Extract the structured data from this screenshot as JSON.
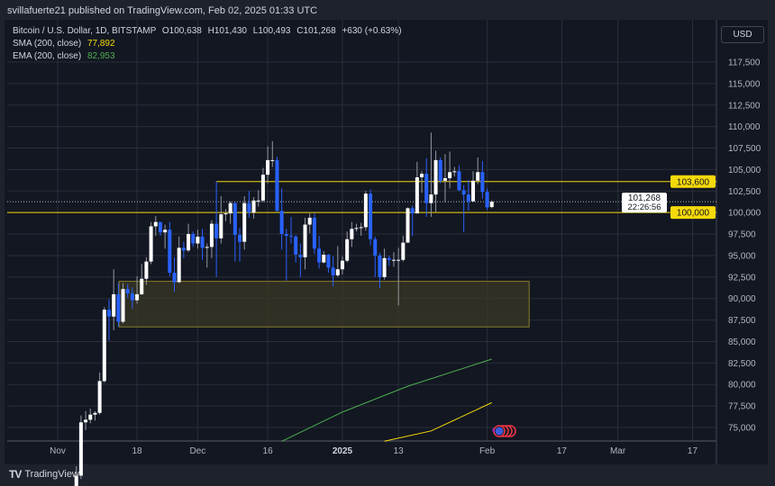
{
  "header": {
    "published": "svillafuerte21 published on TradingView.com, Feb 02, 2025 01:33 UTC"
  },
  "legend": {
    "symbol": "Bitcoin / U.S. Dollar, 1D, BITSTAMP",
    "open": "O100,638",
    "high": "H101,430",
    "low": "L100,493",
    "close": "C101,268",
    "change": "+630 (+0.63%)",
    "sma_label": "SMA (200, close)",
    "sma_value": "77,892",
    "ema_label": "EMA (200, close)",
    "ema_value": "82,953"
  },
  "currency": "USD",
  "footer": {
    "brand": "TradingView"
  },
  "colors": {
    "up": "#ffffff",
    "down": "#2962ff",
    "level": "#f5d90a",
    "sma": "#f5d90a",
    "ema": "#4caf50",
    "zone": "#3a3824"
  },
  "price_axis": [
    "117,500",
    "115,000",
    "112,500",
    "110,000",
    "107,500",
    "105,000",
    "102,500",
    "100,000",
    "97,500",
    "95,000",
    "92,500",
    "90,000",
    "87,500",
    "85,000",
    "82,500",
    "80,000",
    "77,500",
    "75,000"
  ],
  "time_axis": [
    {
      "label": "Nov",
      "date": "2024-11-01"
    },
    {
      "label": "18",
      "date": "2024-11-18"
    },
    {
      "label": "Dec",
      "date": "2024-12-01"
    },
    {
      "label": "16",
      "date": "2024-12-16"
    },
    {
      "label": "2025",
      "date": "2025-01-01",
      "bold": true
    },
    {
      "label": "13",
      "date": "2025-01-13"
    },
    {
      "label": "Feb",
      "date": "2025-02-01"
    },
    {
      "label": "17",
      "date": "2025-02-17"
    },
    {
      "label": "Mar",
      "date": "2025-03-01"
    },
    {
      "label": "17",
      "date": "2025-03-17"
    }
  ],
  "levels": [
    {
      "price": 103600,
      "label": "103,600",
      "from": "2024-12-05"
    },
    {
      "price": 100000,
      "label": "100,000",
      "from": "2024-11-01"
    }
  ],
  "last_price": {
    "price": 101268,
    "label": "101,268",
    "countdown": "22:26:56"
  },
  "zone": {
    "from": "2024-11-18",
    "to": "2025-02-10",
    "top": 92000,
    "bottom": 86700
  },
  "sma_line": [
    [
      "2025-01-10",
      73400
    ],
    [
      "2025-01-20",
      74600
    ],
    [
      "2025-02-02",
      77892
    ]
  ],
  "ema_line": [
    [
      "2024-12-19",
      73400
    ],
    [
      "2025-01-01",
      76800
    ],
    [
      "2025-01-15",
      79800
    ],
    [
      "2025-02-02",
      82953
    ]
  ],
  "candles": [
    [
      "2024-11-05",
      67800,
      70500,
      66800,
      69400
    ],
    [
      "2024-11-06",
      69400,
      76400,
      69000,
      75600
    ],
    [
      "2024-11-07",
      75600,
      76900,
      74700,
      75900
    ],
    [
      "2024-11-08",
      75900,
      77200,
      75500,
      76500
    ],
    [
      "2024-11-09",
      76500,
      76900,
      75800,
      76700
    ],
    [
      "2024-11-10",
      76700,
      81400,
      76500,
      80400
    ],
    [
      "2024-11-11",
      80400,
      89000,
      80200,
      88700
    ],
    [
      "2024-11-12",
      88700,
      89900,
      85100,
      87900
    ],
    [
      "2024-11-13",
      87900,
      93400,
      86300,
      90500
    ],
    [
      "2024-11-14",
      90500,
      91800,
      86700,
      87300
    ],
    [
      "2024-11-15",
      87300,
      91800,
      87100,
      91100
    ],
    [
      "2024-11-16",
      91100,
      91700,
      90100,
      90600
    ],
    [
      "2024-11-17",
      90600,
      91300,
      88800,
      89800
    ],
    [
      "2024-11-18",
      89800,
      92600,
      89400,
      90500
    ],
    [
      "2024-11-19",
      90500,
      94000,
      90400,
      92300
    ],
    [
      "2024-11-20",
      92300,
      94800,
      91600,
      94300
    ],
    [
      "2024-11-21",
      94300,
      98900,
      94000,
      98400
    ],
    [
      "2024-11-22",
      98400,
      99600,
      97300,
      98900
    ],
    [
      "2024-11-23",
      98900,
      98900,
      97300,
      97700
    ],
    [
      "2024-11-24",
      97700,
      98600,
      95800,
      98000
    ],
    [
      "2024-11-25",
      98000,
      98900,
      92600,
      93000
    ],
    [
      "2024-11-26",
      93000,
      94800,
      90800,
      91900
    ],
    [
      "2024-11-27",
      91900,
      97200,
      91800,
      95900
    ],
    [
      "2024-11-28",
      95900,
      96600,
      94700,
      95600
    ],
    [
      "2024-11-29",
      95600,
      98700,
      95400,
      97500
    ],
    [
      "2024-11-30",
      97500,
      97800,
      96000,
      96400
    ],
    [
      "2024-12-01",
      96400,
      98000,
      95800,
      97200
    ],
    [
      "2024-12-02",
      97200,
      98100,
      94500,
      95900
    ],
    [
      "2024-12-03",
      95900,
      96400,
      93600,
      96000
    ],
    [
      "2024-12-04",
      96000,
      99100,
      94700,
      98700
    ],
    [
      "2024-12-05",
      98700,
      103600,
      92500,
      97000
    ],
    [
      "2024-12-06",
      97000,
      101900,
      96400,
      99800
    ],
    [
      "2024-12-07",
      99800,
      100400,
      99000,
      99900
    ],
    [
      "2024-12-08",
      99900,
      101300,
      98700,
      101100
    ],
    [
      "2024-12-09",
      101100,
      101200,
      94300,
      97400
    ],
    [
      "2024-12-10",
      97400,
      98200,
      94300,
      96600
    ],
    [
      "2024-12-11",
      96600,
      101900,
      95700,
      101100
    ],
    [
      "2024-12-12",
      101100,
      102500,
      99400,
      100000
    ],
    [
      "2024-12-13",
      100000,
      101800,
      99300,
      101400
    ],
    [
      "2024-12-14",
      101400,
      102600,
      100700,
      101400
    ],
    [
      "2024-12-15",
      101400,
      105200,
      101200,
      104400
    ],
    [
      "2024-12-16",
      104400,
      107700,
      103400,
      106100
    ],
    [
      "2024-12-17",
      106100,
      108300,
      105300,
      106100
    ],
    [
      "2024-12-18",
      106100,
      106500,
      100100,
      100200
    ],
    [
      "2024-12-19",
      100200,
      102800,
      95700,
      97500
    ],
    [
      "2024-12-20",
      97500,
      98100,
      92100,
      97300
    ],
    [
      "2024-12-21",
      97300,
      99500,
      96400,
      97200
    ],
    [
      "2024-12-22",
      97200,
      97400,
      94200,
      95100
    ],
    [
      "2024-12-23",
      95100,
      96400,
      92500,
      94800
    ],
    [
      "2024-12-24",
      94800,
      99400,
      93400,
      98600
    ],
    [
      "2024-12-25",
      98600,
      99900,
      97600,
      99400
    ],
    [
      "2024-12-26",
      99400,
      99900,
      95200,
      95800
    ],
    [
      "2024-12-27",
      95800,
      97300,
      93500,
      94200
    ],
    [
      "2024-12-28",
      94200,
      95500,
      94100,
      95100
    ],
    [
      "2024-12-29",
      95100,
      95200,
      93000,
      93600
    ],
    [
      "2024-12-30",
      93600,
      94900,
      91400,
      92700
    ],
    [
      "2024-12-31",
      92700,
      96100,
      92500,
      93400
    ],
    [
      "2025-01-01",
      93400,
      94900,
      92800,
      94400
    ],
    [
      "2025-01-02",
      94400,
      97800,
      94200,
      96900
    ],
    [
      "2025-01-03",
      96900,
      98900,
      96000,
      98100
    ],
    [
      "2025-01-04",
      98100,
      98700,
      97800,
      98200
    ],
    [
      "2025-01-05",
      98200,
      98800,
      97300,
      98300
    ],
    [
      "2025-01-06",
      98300,
      102500,
      97900,
      102200
    ],
    [
      "2025-01-07",
      102200,
      102700,
      96200,
      96900
    ],
    [
      "2025-01-08",
      96900,
      97200,
      92500,
      95000
    ],
    [
      "2025-01-09",
      95000,
      95300,
      91200,
      92500
    ],
    [
      "2025-01-10",
      92500,
      95800,
      92200,
      94700
    ],
    [
      "2025-01-11",
      94700,
      95000,
      93800,
      94500
    ],
    [
      "2025-01-12",
      94500,
      95400,
      93700,
      94500
    ],
    [
      "2025-01-13",
      94500,
      95900,
      89200,
      94500
    ],
    [
      "2025-01-14",
      94500,
      97300,
      94300,
      96500
    ],
    [
      "2025-01-15",
      96500,
      100600,
      96500,
      100500
    ],
    [
      "2025-01-16",
      100500,
      100800,
      97300,
      99900
    ],
    [
      "2025-01-17",
      99900,
      105900,
      99900,
      104100
    ],
    [
      "2025-01-18",
      104100,
      104800,
      102300,
      104500
    ],
    [
      "2025-01-19",
      104500,
      106300,
      99500,
      101100
    ],
    [
      "2025-01-20",
      101100,
      109300,
      99500,
      102100
    ],
    [
      "2025-01-21",
      102100,
      107200,
      100100,
      106100
    ],
    [
      "2025-01-22",
      106100,
      106400,
      103400,
      103700
    ],
    [
      "2025-01-23",
      103700,
      106800,
      101200,
      104000
    ],
    [
      "2025-01-24",
      104000,
      107100,
      102800,
      104700
    ],
    [
      "2025-01-25",
      104700,
      105300,
      104200,
      104800
    ],
    [
      "2025-01-26",
      104800,
      105500,
      102500,
      102600
    ],
    [
      "2025-01-27",
      102600,
      103200,
      97700,
      102100
    ],
    [
      "2025-01-28",
      102100,
      103800,
      100200,
      101300
    ],
    [
      "2025-01-29",
      101300,
      104800,
      101300,
      103700
    ],
    [
      "2025-01-30",
      103700,
      106400,
      103300,
      104700
    ],
    [
      "2025-01-31",
      104700,
      106000,
      101600,
      102400
    ],
    [
      "2025-02-01",
      102400,
      102800,
      100300,
      100600
    ],
    [
      "2025-02-02",
      100638,
      101430,
      100493,
      101268
    ]
  ]
}
